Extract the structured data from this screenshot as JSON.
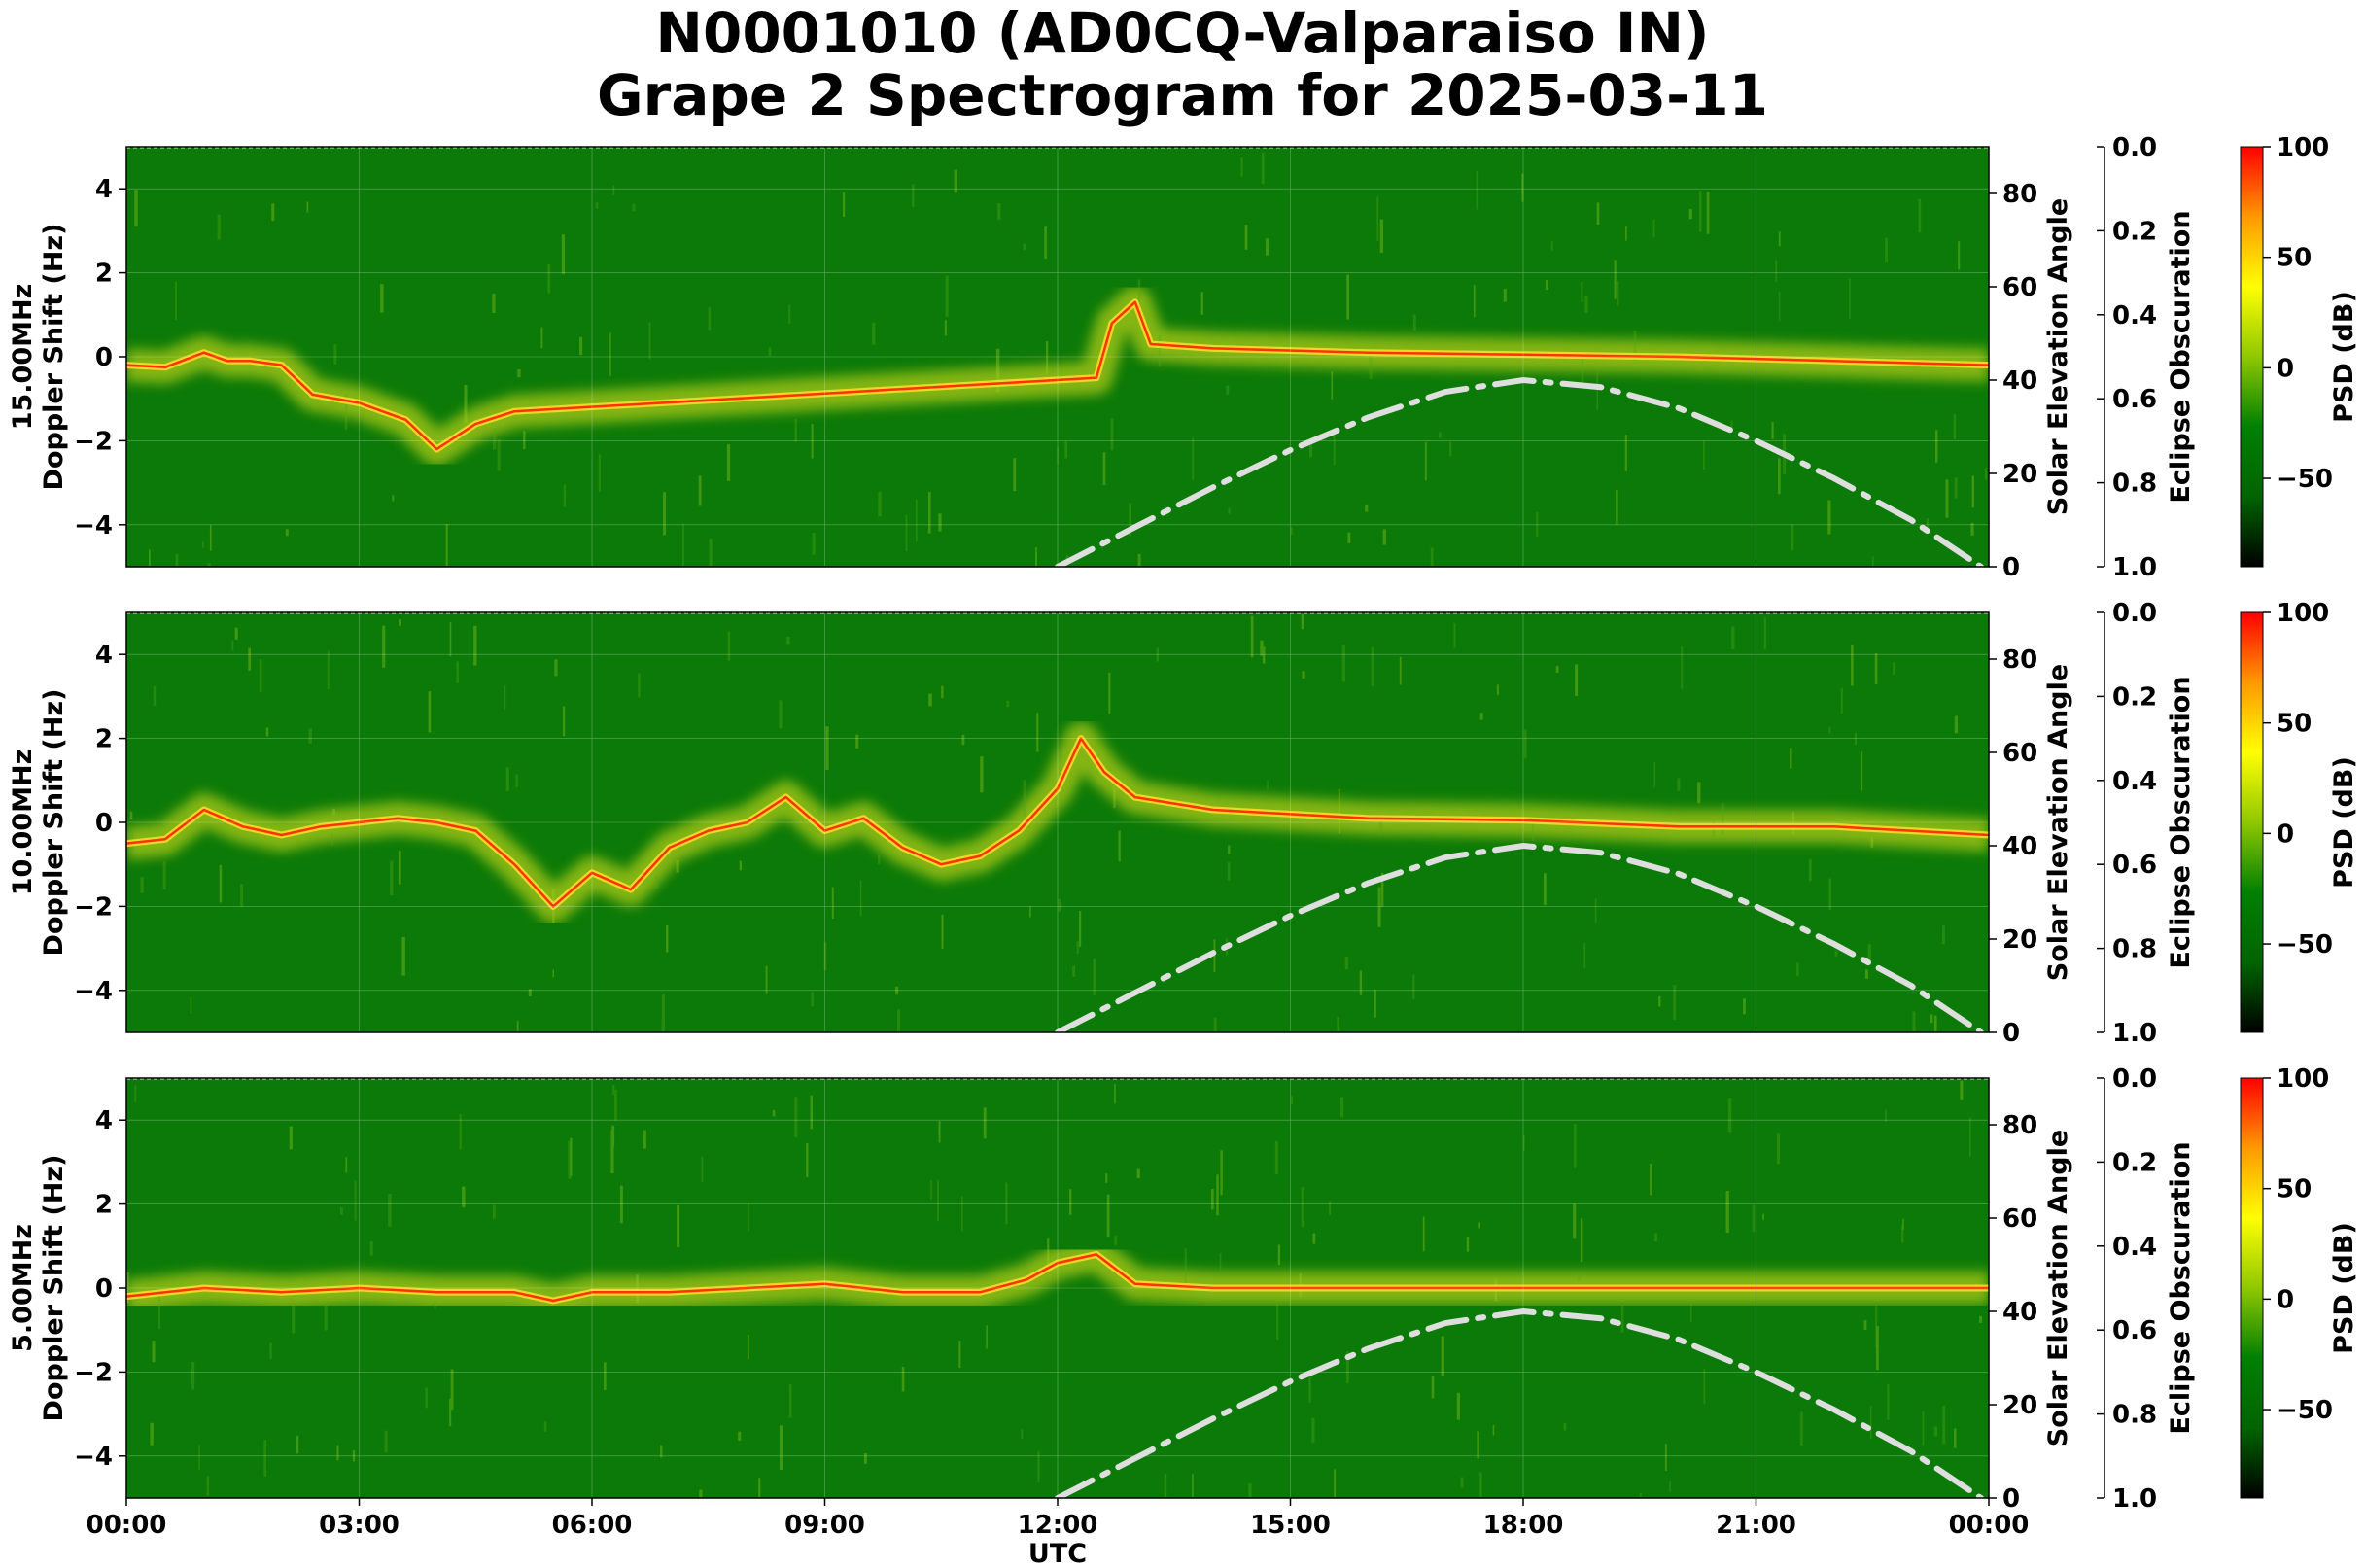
{
  "title_line1": "N0001010 (AD0CQ-Valparaiso IN)",
  "title_line2": "Grape 2 Spectrogram for 2025-03-11",
  "colors": {
    "background_green": "#0c7a08",
    "spectral_yellow": "#e6e61a",
    "doppler_trace": "#ff3300",
    "solar_curve": "#dedede"
  },
  "chart_data": [
    {
      "type": "heatmap",
      "frequency_label": "15.00MHz",
      "ylabel": "15.00MHz\nDoppler Shift (Hz)",
      "xlabel": "",
      "ylim": [
        -5,
        5
      ],
      "yticks": [
        "4",
        "2",
        "0",
        "−2",
        "−4"
      ],
      "xlim_hours": [
        0,
        24
      ],
      "right_axis": {
        "label": "Solar Elevation Angle",
        "ylim": [
          0,
          90
        ],
        "ticks": [
          "0",
          "20",
          "40",
          "60",
          "80"
        ]
      },
      "eclipse_axis": {
        "label": "Eclipse Obscuration",
        "ylim": [
          1.0,
          0.0
        ],
        "ticks": [
          "0.0",
          "0.2",
          "0.4",
          "0.6",
          "0.8",
          "1.0"
        ]
      },
      "colorbar": {
        "label": "PSD (dB)",
        "range": [
          -90,
          100
        ],
        "ticks": [
          "100",
          "50",
          "0",
          "−50"
        ],
        "colormap": [
          "#000000",
          "#006400",
          "#008000",
          "#8fc800",
          "#ffff00",
          "#ff9900",
          "#ff0000"
        ]
      },
      "doppler_trace_hz": [
        [
          0.0,
          -0.2
        ],
        [
          0.5,
          -0.25
        ],
        [
          1.0,
          0.1
        ],
        [
          1.3,
          -0.1
        ],
        [
          1.6,
          -0.1
        ],
        [
          2.0,
          -0.2
        ],
        [
          2.4,
          -0.9
        ],
        [
          3.0,
          -1.1
        ],
        [
          3.6,
          -1.5
        ],
        [
          4.0,
          -2.2
        ],
        [
          4.5,
          -1.6
        ],
        [
          5.0,
          -1.3
        ],
        [
          12.5,
          -0.5
        ],
        [
          12.7,
          0.8
        ],
        [
          13.0,
          1.3
        ],
        [
          13.2,
          0.3
        ],
        [
          14.0,
          0.2
        ],
        [
          16.0,
          0.1
        ],
        [
          18.0,
          0.05
        ],
        [
          20.0,
          0.0
        ],
        [
          22.0,
          -0.1
        ],
        [
          24.0,
          -0.2
        ]
      ],
      "solar_elevation_deg": [
        [
          12.0,
          0
        ],
        [
          13.0,
          8.5
        ],
        [
          14.0,
          17
        ],
        [
          15.0,
          25
        ],
        [
          16.0,
          32
        ],
        [
          17.0,
          37.5
        ],
        [
          18.0,
          40
        ],
        [
          19.0,
          38.5
        ],
        [
          20.0,
          34
        ],
        [
          21.0,
          27
        ],
        [
          22.0,
          19
        ],
        [
          23.0,
          10
        ],
        [
          23.9,
          0
        ]
      ]
    },
    {
      "type": "heatmap",
      "frequency_label": "10.00MHz",
      "ylabel": "10.00MHz\nDoppler Shift (Hz)",
      "xlabel": "",
      "ylim": [
        -5,
        5
      ],
      "yticks": [
        "4",
        "2",
        "0",
        "−2",
        "−4"
      ],
      "xlim_hours": [
        0,
        24
      ],
      "right_axis": {
        "label": "Solar Elevation Angle",
        "ylim": [
          0,
          90
        ],
        "ticks": [
          "0",
          "20",
          "40",
          "60",
          "80"
        ]
      },
      "eclipse_axis": {
        "label": "Eclipse Obscuration",
        "ylim": [
          1.0,
          0.0
        ],
        "ticks": [
          "0.0",
          "0.2",
          "0.4",
          "0.6",
          "0.8",
          "1.0"
        ]
      },
      "colorbar": {
        "label": "PSD (dB)",
        "range": [
          -90,
          100
        ],
        "ticks": [
          "100",
          "50",
          "0",
          "−50"
        ],
        "colormap": [
          "#000000",
          "#006400",
          "#008000",
          "#8fc800",
          "#ffff00",
          "#ff9900",
          "#ff0000"
        ]
      },
      "doppler_trace_hz": [
        [
          0.0,
          -0.5
        ],
        [
          0.5,
          -0.4
        ],
        [
          1.0,
          0.3
        ],
        [
          1.5,
          -0.1
        ],
        [
          2.0,
          -0.3
        ],
        [
          2.5,
          -0.1
        ],
        [
          3.0,
          0.0
        ],
        [
          3.5,
          0.1
        ],
        [
          4.0,
          0.0
        ],
        [
          4.5,
          -0.2
        ],
        [
          5.0,
          -1.0
        ],
        [
          5.5,
          -2.0
        ],
        [
          6.0,
          -1.2
        ],
        [
          6.5,
          -1.6
        ],
        [
          7.0,
          -0.6
        ],
        [
          7.5,
          -0.2
        ],
        [
          8.0,
          0.0
        ],
        [
          8.5,
          0.6
        ],
        [
          9.0,
          -0.2
        ],
        [
          9.5,
          0.1
        ],
        [
          10.0,
          -0.6
        ],
        [
          10.5,
          -1.0
        ],
        [
          11.0,
          -0.8
        ],
        [
          11.5,
          -0.2
        ],
        [
          12.0,
          0.8
        ],
        [
          12.3,
          2.0
        ],
        [
          12.6,
          1.2
        ],
        [
          13.0,
          0.6
        ],
        [
          14.0,
          0.3
        ],
        [
          16.0,
          0.1
        ],
        [
          18.0,
          0.05
        ],
        [
          20.0,
          -0.1
        ],
        [
          22.0,
          -0.1
        ],
        [
          24.0,
          -0.3
        ]
      ],
      "solar_elevation_deg": [
        [
          12.0,
          0
        ],
        [
          13.0,
          8.5
        ],
        [
          14.0,
          17
        ],
        [
          15.0,
          25
        ],
        [
          16.0,
          32
        ],
        [
          17.0,
          37.5
        ],
        [
          18.0,
          40
        ],
        [
          19.0,
          38.5
        ],
        [
          20.0,
          34
        ],
        [
          21.0,
          27
        ],
        [
          22.0,
          19
        ],
        [
          23.0,
          10
        ],
        [
          23.9,
          0
        ]
      ]
    },
    {
      "type": "heatmap",
      "frequency_label": "5.00MHz",
      "ylabel": "5.00MHz\nDoppler Shift (Hz)",
      "xlabel": "UTC",
      "ylim": [
        -5,
        5
      ],
      "yticks": [
        "4",
        "2",
        "0",
        "−2",
        "−4"
      ],
      "xlim_hours": [
        0,
        24
      ],
      "xticks": [
        "00:00",
        "03:00",
        "06:00",
        "09:00",
        "12:00",
        "15:00",
        "18:00",
        "21:00",
        "00:00"
      ],
      "right_axis": {
        "label": "Solar Elevation Angle",
        "ylim": [
          0,
          90
        ],
        "ticks": [
          "0",
          "20",
          "40",
          "60",
          "80"
        ]
      },
      "eclipse_axis": {
        "label": "Eclipse Obscuration",
        "ylim": [
          1.0,
          0.0
        ],
        "ticks": [
          "0.0",
          "0.2",
          "0.4",
          "0.6",
          "0.8",
          "1.0"
        ]
      },
      "colorbar": {
        "label": "PSD (dB)",
        "range": [
          -90,
          100
        ],
        "ticks": [
          "100",
          "50",
          "0",
          "−50"
        ],
        "colormap": [
          "#000000",
          "#006400",
          "#008000",
          "#8fc800",
          "#ffff00",
          "#ff9900",
          "#ff0000"
        ]
      },
      "doppler_trace_hz": [
        [
          0.0,
          -0.2
        ],
        [
          1.0,
          0.0
        ],
        [
          2.0,
          -0.1
        ],
        [
          3.0,
          0.0
        ],
        [
          4.0,
          -0.1
        ],
        [
          5.0,
          -0.1
        ],
        [
          5.5,
          -0.3
        ],
        [
          6.0,
          -0.1
        ],
        [
          7.0,
          -0.1
        ],
        [
          8.0,
          0.0
        ],
        [
          9.0,
          0.1
        ],
        [
          10.0,
          -0.1
        ],
        [
          11.0,
          -0.1
        ],
        [
          11.6,
          0.2
        ],
        [
          12.0,
          0.6
        ],
        [
          12.5,
          0.8
        ],
        [
          13.0,
          0.1
        ],
        [
          14.0,
          0.0
        ],
        [
          16.0,
          0.0
        ],
        [
          18.0,
          0.0
        ],
        [
          20.0,
          0.0
        ],
        [
          22.0,
          0.0
        ],
        [
          24.0,
          0.0
        ]
      ],
      "solar_elevation_deg": [
        [
          12.0,
          0
        ],
        [
          13.0,
          8.5
        ],
        [
          14.0,
          17
        ],
        [
          15.0,
          25
        ],
        [
          16.0,
          32
        ],
        [
          17.0,
          37.5
        ],
        [
          18.0,
          40
        ],
        [
          19.0,
          38.5
        ],
        [
          20.0,
          34
        ],
        [
          21.0,
          27
        ],
        [
          22.0,
          19
        ],
        [
          23.0,
          10
        ],
        [
          23.9,
          0
        ]
      ]
    }
  ]
}
